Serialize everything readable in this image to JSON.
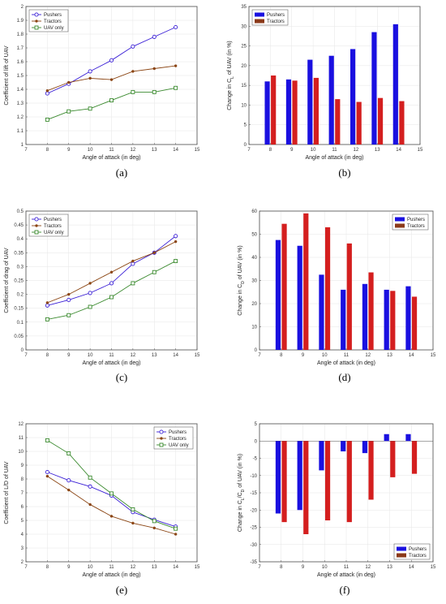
{
  "chart_data": [
    {
      "id": "a",
      "type": "line",
      "panel_label": "(a)",
      "xlabel": "Angle of attack (in deg)",
      "ylabel": "Coefficient of lift of UAV",
      "xlim": [
        7,
        15
      ],
      "ylim": [
        1,
        2
      ],
      "xticks": [
        "7",
        "8",
        "9",
        "10",
        "11",
        "12",
        "13",
        "14",
        "15"
      ],
      "yticks": [
        "1",
        "1.1",
        "1.2",
        "1.3",
        "1.4",
        "1.5",
        "1.6",
        "1.7",
        "1.8",
        "1.9",
        "2"
      ],
      "legend": "top-left",
      "x": [
        8,
        9,
        10,
        11,
        12,
        13,
        14
      ],
      "series": [
        {
          "name": "Pushers",
          "color": "#3a1fd6",
          "marker": "circle",
          "values": [
            1.37,
            1.44,
            1.53,
            1.61,
            1.71,
            1.78,
            1.85
          ]
        },
        {
          "name": "Tractors",
          "color": "#8b4513",
          "marker": "dot",
          "values": [
            1.39,
            1.45,
            1.48,
            1.47,
            1.53,
            1.55,
            1.57
          ]
        },
        {
          "name": "UAV only",
          "color": "#3a8a2e",
          "marker": "square",
          "values": [
            1.18,
            1.24,
            1.26,
            1.32,
            1.38,
            1.38,
            1.41
          ]
        }
      ]
    },
    {
      "id": "b",
      "type": "bar",
      "panel_label": "(b)",
      "xlabel": "Angle of attack (in deg)",
      "ylabel_parts": [
        "Change in C",
        "L",
        " of UAV (in %)"
      ],
      "xlim": [
        7,
        15
      ],
      "ylim": [
        0,
        35
      ],
      "xticks": [
        "7",
        "8",
        "9",
        "10",
        "11",
        "12",
        "13",
        "14",
        "15"
      ],
      "yticks": [
        "0",
        "5",
        "10",
        "15",
        "20",
        "25",
        "30",
        "35"
      ],
      "legend": "top-left",
      "categories": [
        8,
        9,
        10,
        11,
        12,
        13,
        14
      ],
      "series": [
        {
          "name": "Pushers",
          "color": "#1a10e0",
          "values": [
            16.0,
            16.5,
            21.5,
            22.5,
            24.2,
            28.5,
            30.5
          ]
        },
        {
          "name": "Tractors",
          "color": "#d41f1f",
          "legend_color": "#8b3a1a",
          "values": [
            17.5,
            16.2,
            16.9,
            11.5,
            10.8,
            11.8,
            11.0
          ]
        }
      ]
    },
    {
      "id": "c",
      "type": "line",
      "panel_label": "(c)",
      "xlabel": "Angle of attack (in deg)",
      "ylabel": "Coefficient of drag of UAV",
      "xlim": [
        7,
        15
      ],
      "ylim": [
        0,
        0.5
      ],
      "xticks": [
        "7",
        "8",
        "9",
        "10",
        "11",
        "12",
        "13",
        "14",
        "15"
      ],
      "yticks": [
        "0",
        "0.05",
        "0.1",
        "0.15",
        "0.2",
        "0.25",
        "0.3",
        "0.35",
        "0.4",
        "0.45",
        "0.5"
      ],
      "legend": "top-left",
      "x": [
        8,
        9,
        10,
        11,
        12,
        13,
        14
      ],
      "series": [
        {
          "name": "Pushers",
          "color": "#3a1fd6",
          "marker": "circle",
          "values": [
            0.16,
            0.18,
            0.205,
            0.24,
            0.31,
            0.35,
            0.41
          ]
        },
        {
          "name": "Tractors",
          "color": "#8b4513",
          "marker": "dot",
          "values": [
            0.17,
            0.2,
            0.24,
            0.28,
            0.32,
            0.35,
            0.39
          ]
        },
        {
          "name": "UAV only",
          "color": "#3a8a2e",
          "marker": "square",
          "values": [
            0.11,
            0.125,
            0.155,
            0.19,
            0.24,
            0.28,
            0.32
          ]
        }
      ]
    },
    {
      "id": "d",
      "type": "bar",
      "panel_label": "(d)",
      "xlabel": "Angle of attack (in deg)",
      "ylabel_parts": [
        "Change in C",
        "D",
        " of UAV (in %)"
      ],
      "xlim": [
        7,
        15
      ],
      "ylim": [
        0,
        60
      ],
      "xticks": [
        "7",
        "8",
        "9",
        "10",
        "11",
        "12",
        "13",
        "14",
        "15"
      ],
      "yticks": [
        "0",
        "10",
        "20",
        "30",
        "40",
        "50",
        "60"
      ],
      "legend": "top-right",
      "categories": [
        8,
        9,
        10,
        11,
        12,
        13,
        14
      ],
      "series": [
        {
          "name": "Pushers",
          "color": "#1a10e0",
          "values": [
            47.5,
            45.0,
            32.5,
            26.0,
            28.5,
            26.0,
            27.5
          ]
        },
        {
          "name": "Tractors",
          "color": "#d41f1f",
          "legend_color": "#8b3a1a",
          "values": [
            54.5,
            59.0,
            53.0,
            46.0,
            33.5,
            25.5,
            23.0
          ]
        }
      ]
    },
    {
      "id": "e",
      "type": "line",
      "panel_label": "(e)",
      "xlabel": "Angle of attack (in deg)",
      "ylabel": "Coefficient of L/D of UAV",
      "xlim": [
        7,
        15
      ],
      "ylim": [
        2,
        12
      ],
      "xticks": [
        "7",
        "8",
        "9",
        "10",
        "11",
        "12",
        "13",
        "14",
        "15"
      ],
      "yticks": [
        "2",
        "3",
        "4",
        "5",
        "6",
        "7",
        "8",
        "9",
        "10",
        "11",
        "12"
      ],
      "legend": "top-right",
      "x": [
        8,
        9,
        10,
        11,
        12,
        13,
        14
      ],
      "series": [
        {
          "name": "Pushers",
          "color": "#3a1fd6",
          "marker": "circle",
          "values": [
            8.5,
            7.9,
            7.45,
            6.8,
            5.6,
            5.05,
            4.55
          ]
        },
        {
          "name": "Tractors",
          "color": "#8b4513",
          "marker": "dot",
          "values": [
            8.2,
            7.2,
            6.15,
            5.3,
            4.8,
            4.45,
            4.0
          ]
        },
        {
          "name": "UAV only",
          "color": "#3a8a2e",
          "marker": "square",
          "values": [
            10.8,
            9.85,
            8.1,
            6.95,
            5.8,
            4.95,
            4.4
          ]
        }
      ]
    },
    {
      "id": "f",
      "type": "bar",
      "panel_label": "(f)",
      "xlabel": "Angle of attack (in deg)",
      "ylabel_parts": [
        "Change in C",
        "L",
        "/C",
        "D",
        " of UAV (in %)"
      ],
      "xlim": [
        7,
        15
      ],
      "ylim": [
        -35,
        5
      ],
      "xticks": [
        "7",
        "8",
        "9",
        "10",
        "11",
        "12",
        "13",
        "14",
        "15"
      ],
      "yticks": [
        "-35",
        "-30",
        "-25",
        "-20",
        "-15",
        "-10",
        "-5",
        "0",
        "5"
      ],
      "legend": "bottom-right",
      "categories": [
        8,
        9,
        10,
        11,
        12,
        13,
        14
      ],
      "series": [
        {
          "name": "Pushers",
          "color": "#1a10e0",
          "values": [
            -21.0,
            -20.0,
            -8.5,
            -3.0,
            -3.5,
            2.0,
            2.0
          ]
        },
        {
          "name": "Tractors",
          "color": "#d41f1f",
          "legend_color": "#8b3a1a",
          "values": [
            -23.5,
            -27.0,
            -23.0,
            -23.5,
            -17.0,
            -10.5,
            -9.5
          ]
        }
      ]
    }
  ]
}
